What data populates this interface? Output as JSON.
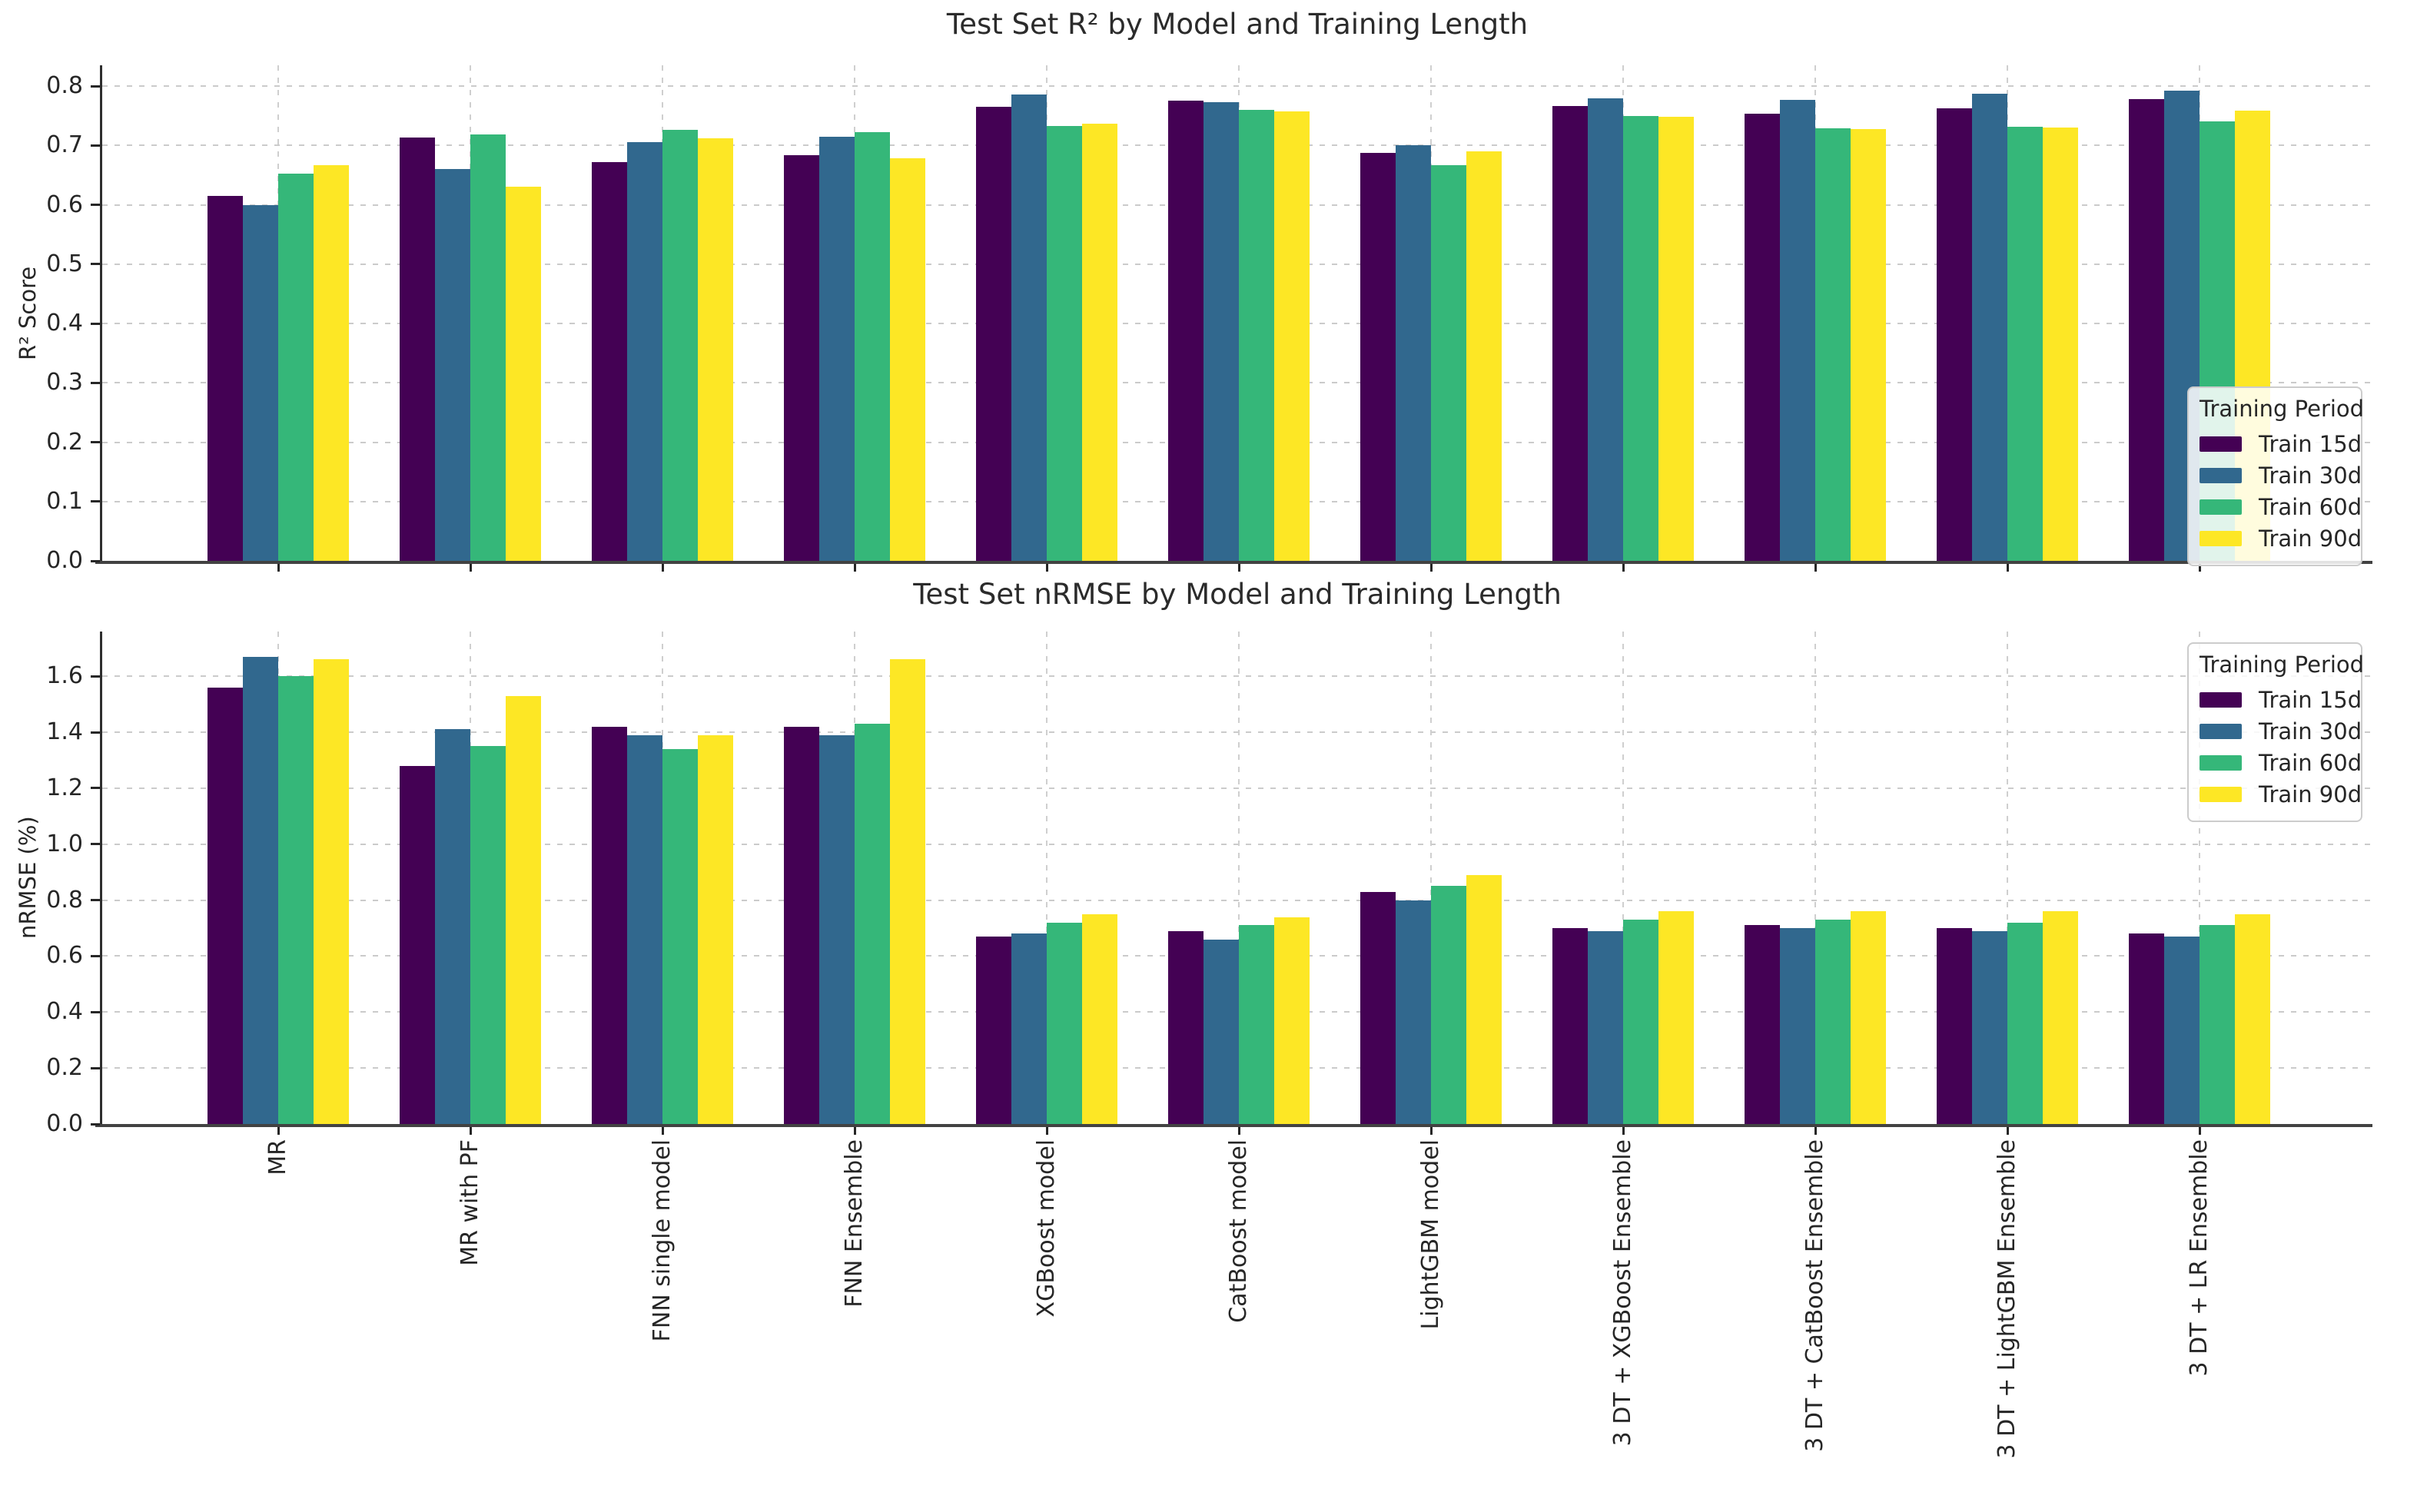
{
  "figure": {
    "background": "#ffffff",
    "text_color": "#262626",
    "grid_color": "#cccccc",
    "spine_color": "#424242",
    "legend_title": "Training Period",
    "series_names": [
      "Train 15d",
      "Train 30d",
      "Train 60d",
      "Train 90d"
    ],
    "series_colors": [
      "#440154",
      "#31688e",
      "#35b779",
      "#fde725"
    ]
  },
  "chart_data": [
    {
      "type": "bar",
      "title": "Test Set R² by Model and Training Length",
      "xlabel": "",
      "ylabel": "R² Score",
      "ylim": [
        0,
        0.835
      ],
      "yticks": [
        0.0,
        0.1,
        0.2,
        0.3,
        0.4,
        0.5,
        0.6,
        0.7,
        0.8
      ],
      "grid": true,
      "legend_position": "right-lower",
      "show_xticklabels": false,
      "categories": [
        "MR",
        "MR with PF",
        "FNN single model",
        "FNN Ensemble",
        "XGBoost model",
        "CatBoost model",
        "LightGBM model",
        "3 DT + XGBoost Ensemble",
        "3 DT + CatBoost Ensemble",
        "3 DT + LightGBM Ensemble",
        "3 DT + LR Ensemble"
      ],
      "series": [
        {
          "name": "Train 15d",
          "color": "#440154",
          "values": [
            0.615,
            0.713,
            0.672,
            0.684,
            0.765,
            0.775,
            0.688,
            0.767,
            0.754,
            0.762,
            0.778
          ]
        },
        {
          "name": "Train 30d",
          "color": "#31688e",
          "values": [
            0.6,
            0.66,
            0.705,
            0.714,
            0.786,
            0.773,
            0.7,
            0.78,
            0.777,
            0.787,
            0.792
          ]
        },
        {
          "name": "Train 60d",
          "color": "#35b779",
          "values": [
            0.652,
            0.718,
            0.726,
            0.723,
            0.733,
            0.76,
            0.667,
            0.749,
            0.729,
            0.731,
            0.741
          ]
        },
        {
          "name": "Train 90d",
          "color": "#fde725",
          "values": [
            0.667,
            0.631,
            0.712,
            0.678,
            0.737,
            0.757,
            0.69,
            0.748,
            0.728,
            0.73,
            0.759
          ]
        }
      ]
    },
    {
      "type": "bar",
      "title": "Test Set nRMSE by Model and Training Length",
      "xlabel": "",
      "ylabel": "nRMSE (%)",
      "ylim": [
        0,
        1.76
      ],
      "yticks": [
        0.0,
        0.2,
        0.4,
        0.6,
        0.8,
        1.0,
        1.2,
        1.4,
        1.6
      ],
      "grid": true,
      "legend_position": "top-right",
      "show_xticklabels": true,
      "categories": [
        "MR",
        "MR with PF",
        "FNN single model",
        "FNN Ensemble",
        "XGBoost model",
        "CatBoost model",
        "LightGBM model",
        "3 DT + XGBoost Ensemble",
        "3 DT + CatBoost Ensemble",
        "3 DT + LightGBM Ensemble",
        "3 DT + LR Ensemble"
      ],
      "series": [
        {
          "name": "Train 15d",
          "color": "#440154",
          "values": [
            1.56,
            1.28,
            1.42,
            1.42,
            0.67,
            0.69,
            0.83,
            0.7,
            0.71,
            0.7,
            0.68
          ]
        },
        {
          "name": "Train 30d",
          "color": "#31688e",
          "values": [
            1.67,
            1.41,
            1.39,
            1.39,
            0.68,
            0.66,
            0.8,
            0.69,
            0.7,
            0.69,
            0.67
          ]
        },
        {
          "name": "Train 60d",
          "color": "#35b779",
          "values": [
            1.6,
            1.35,
            1.34,
            1.43,
            0.72,
            0.71,
            0.85,
            0.73,
            0.73,
            0.72,
            0.71
          ]
        },
        {
          "name": "Train 90d",
          "color": "#fde725",
          "values": [
            1.66,
            1.53,
            1.39,
            1.66,
            0.75,
            0.74,
            0.89,
            0.76,
            0.76,
            0.76,
            0.75
          ]
        }
      ]
    }
  ]
}
